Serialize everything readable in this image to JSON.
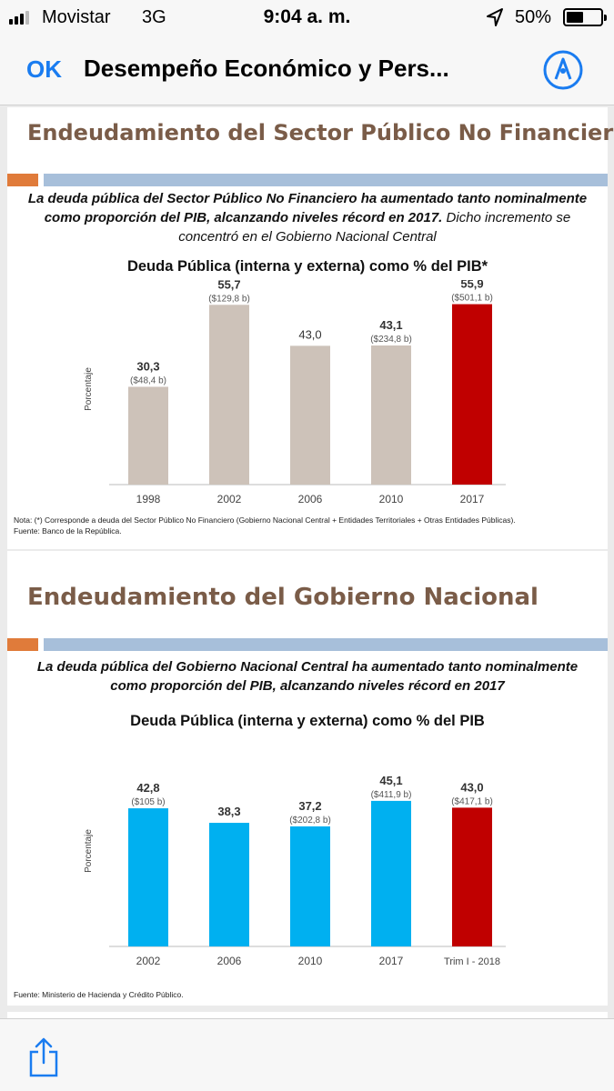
{
  "status_bar": {
    "carrier": "Movistar",
    "network": "3G",
    "time": "9:04 a. m.",
    "battery_percent": "50%",
    "battery_level": 0.5,
    "icons": [
      "signal-icon",
      "location-arrow-icon",
      "battery-icon"
    ]
  },
  "nav": {
    "ok_label": "OK",
    "title": "Desempeño Económico y Pers..."
  },
  "slides": [
    {
      "title": "Endeudamiento del Sector Público No Financiero",
      "subtitle_bold": "La deuda pública del Sector Público No Financiero ha aumentado tanto nominalmente como proporción del PIB, alcanzando niveles récord en 2017.",
      "subtitle_regular": " Dicho incremento se concentró en el Gobierno Nacional Central",
      "note_line1": "Nota: (*)  Corresponde a deuda del  Sector Público No Financiero (Gobierno Nacional Central + Entidades Territoriales + Otras Entidades Públicas).",
      "note_line2": "Fuente: Banco de la República."
    },
    {
      "title": "Endeudamiento del Gobierno Nacional",
      "subtitle_bold": "La deuda pública del Gobierno Nacional Central ha aumentado tanto nominalmente como proporción del PIB, alcanzando niveles récord en 2017",
      "subtitle_regular": "",
      "note_line1": "Fuente: Ministerio de Hacienda y Crédito Público.",
      "note_line2": ""
    }
  ],
  "chart_data": [
    {
      "type": "bar",
      "title": "Deuda Pública (interna y externa) como % del PIB*",
      "ylabel": "Porcentaje",
      "xlabel": "",
      "ylim": [
        0,
        60
      ],
      "categories": [
        "1998",
        "2002",
        "2006",
        "2010",
        "2017"
      ],
      "values": [
        30.3,
        55.7,
        43.0,
        43.1,
        55.9
      ],
      "value_labels": [
        "30,3",
        "55,7",
        "43,0",
        "43,1",
        "55,9"
      ],
      "amount_labels": [
        "($48,4 b)",
        "($129,8 b)",
        "",
        "($234,8 b)",
        "($501,1 b)"
      ],
      "bold_value": [
        true,
        true,
        false,
        true,
        true
      ],
      "colors": [
        "#cdc2b9",
        "#cdc2b9",
        "#cdc2b9",
        "#cdc2b9",
        "#c00000"
      ]
    },
    {
      "type": "bar",
      "title": "Deuda Pública (interna y externa) como % del PIB",
      "ylabel": "Porcentaje",
      "xlabel": "",
      "ylim": [
        0,
        60
      ],
      "categories": [
        "2002",
        "2006",
        "2010",
        "2017",
        "Trim I - 2018"
      ],
      "values": [
        42.8,
        38.3,
        37.2,
        45.1,
        43.0
      ],
      "value_labels": [
        "42,8",
        "38,3",
        "37,2",
        "45,1",
        "43,0"
      ],
      "amount_labels": [
        "($105 b)",
        "",
        "($202,8 b)",
        "($411,9 b)",
        "($417,1 b)"
      ],
      "bold_value": [
        true,
        true,
        true,
        true,
        true
      ],
      "colors": [
        "#00b0f0",
        "#00b0f0",
        "#00b0f0",
        "#00b0f0",
        "#c00000"
      ]
    }
  ],
  "toolbar": {
    "icons": [
      "share-icon"
    ]
  }
}
